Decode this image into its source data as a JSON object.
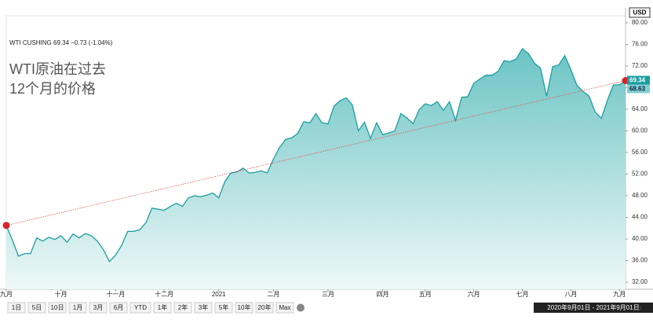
{
  "header": {
    "symbol_line": "WTI CUSHING 69.34 −0.73 (-1.04%)",
    "title_lines": [
      "WTI原油在过去",
      "12个月的价格"
    ]
  },
  "currency": "USD",
  "range_buttons": [
    "1日",
    "5日",
    "10日",
    "1月",
    "3月",
    "6月",
    "YTD",
    "1年",
    "2年",
    "3年",
    "5年",
    "10年",
    "20年",
    "Max"
  ],
  "date_range": "2020年9月01日 - 2021年9月01日",
  "price_tags": [
    "69.34",
    "68.63"
  ],
  "chart_data": {
    "type": "area",
    "categories": [
      "九月",
      null,
      null,
      null,
      null,
      null,
      null,
      null,
      null,
      "十月",
      null,
      null,
      null,
      null,
      null,
      null,
      null,
      null,
      "十一月",
      null,
      null,
      null,
      null,
      null,
      null,
      null,
      "十二月",
      null,
      null,
      null,
      null,
      null,
      null,
      null,
      null,
      "2021",
      null,
      null,
      null,
      null,
      null,
      null,
      null,
      null,
      "二月",
      null,
      null,
      null,
      null,
      null,
      null,
      null,
      null,
      "三月",
      null,
      null,
      null,
      null,
      null,
      null,
      null,
      null,
      "四月",
      null,
      null,
      null,
      null,
      null,
      null,
      "五月",
      null,
      null,
      null,
      null,
      null,
      null,
      null,
      "六月",
      null,
      null,
      null,
      null,
      null,
      null,
      null,
      "七月",
      null,
      null,
      null,
      null,
      null,
      null,
      null,
      "八月",
      null,
      null,
      null,
      null,
      null,
      null,
      null,
      "九月",
      null
    ],
    "values": [
      42.5,
      39.8,
      36.8,
      37.3,
      37.3,
      40.2,
      39.6,
      40.3,
      39.9,
      40.6,
      39.4,
      40.9,
      40.2,
      41.0,
      40.6,
      39.6,
      38.0,
      35.8,
      37.0,
      38.8,
      41.4,
      41.4,
      41.7,
      43.0,
      45.7,
      45.5,
      45.3,
      46.0,
      46.6,
      46.0,
      47.6,
      48.0,
      47.8,
      48.1,
      48.5,
      47.6,
      50.6,
      52.2,
      52.4,
      53.1,
      52.2,
      52.3,
      52.6,
      52.2,
      54.8,
      56.9,
      58.4,
      58.7,
      59.5,
      61.7,
      61.5,
      63.2,
      61.5,
      61.3,
      64.6,
      65.6,
      66.1,
      64.8,
      60.0,
      61.6,
      58.6,
      61.5,
      59.3,
      59.6,
      60.0,
      63.2,
      62.4,
      61.3,
      63.9,
      65.0,
      64.7,
      65.4,
      63.8,
      65.4,
      61.9,
      66.2,
      66.3,
      68.8,
      69.6,
      70.3,
      70.3,
      71.0,
      73.0,
      72.8,
      73.3,
      75.2,
      74.3,
      72.5,
      71.6,
      66.4,
      71.9,
      72.2,
      73.9,
      71.3,
      68.4,
      67.3,
      66.4,
      63.5,
      62.3,
      65.6,
      68.5,
      68.5,
      69.3
    ],
    "color": "#1a9ea0",
    "ylim": [
      30.7,
      81.3
    ],
    "yticks": [
      {
        "value": 32,
        "label": "32.00"
      },
      {
        "value": 36,
        "label": "36.00"
      },
      {
        "value": 40,
        "label": "40.00"
      },
      {
        "value": 44,
        "label": "44.00"
      },
      {
        "value": 48,
        "label": "48.00"
      },
      {
        "value": 52,
        "label": "52.00"
      },
      {
        "value": 56,
        "label": "56.00"
      },
      {
        "value": 60,
        "label": "60.00"
      },
      {
        "value": 64,
        "label": "64.00"
      },
      {
        "value": 68,
        "label": "68.00"
      },
      {
        "value": 72,
        "label": "72.00"
      },
      {
        "value": 76,
        "label": "76.00"
      },
      {
        "value": 80,
        "label": "80.00"
      }
    ]
  }
}
